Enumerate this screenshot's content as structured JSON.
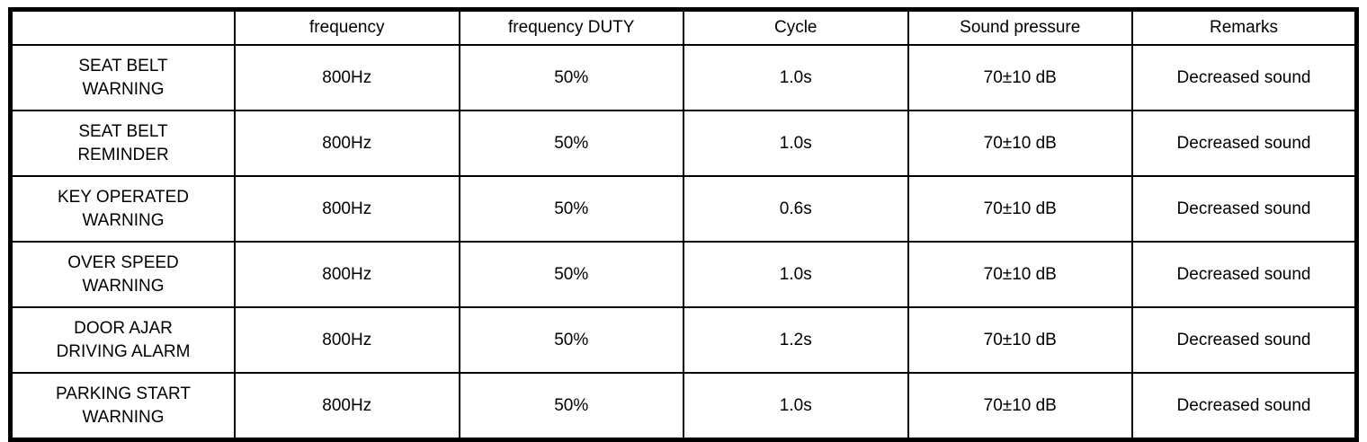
{
  "table": {
    "headers": [
      "",
      "frequency",
      "frequency DUTY",
      "Cycle",
      "Sound pressure",
      "Remarks"
    ],
    "rows": [
      {
        "cells": [
          "SEAT BELT\nWARNING",
          "800Hz",
          "50%",
          "1.0s",
          "70±10 dB",
          "Decreased sound"
        ]
      },
      {
        "cells": [
          "SEAT BELT\nREMINDER",
          "800Hz",
          "50%",
          "1.0s",
          "70±10 dB",
          "Decreased sound"
        ]
      },
      {
        "cells": [
          "KEY OPERATED\nWARNING",
          "800Hz",
          "50%",
          "0.6s",
          "70±10 dB",
          "Decreased sound"
        ]
      },
      {
        "cells": [
          "OVER SPEED\nWARNING",
          "800Hz",
          "50%",
          "1.0s",
          "70±10 dB",
          "Decreased sound"
        ]
      },
      {
        "cells": [
          "DOOR AJAR\nDRIVING ALARM",
          "800Hz",
          "50%",
          "1.2s",
          "70±10 dB",
          "Decreased sound"
        ]
      },
      {
        "cells": [
          "PARKING START\nWARNING",
          "800Hz",
          "50%",
          "1.0s",
          "70±10 dB",
          "Decreased sound"
        ]
      }
    ],
    "colors": {
      "border": "#000000",
      "background": "#ffffff",
      "text": "#000000"
    }
  }
}
